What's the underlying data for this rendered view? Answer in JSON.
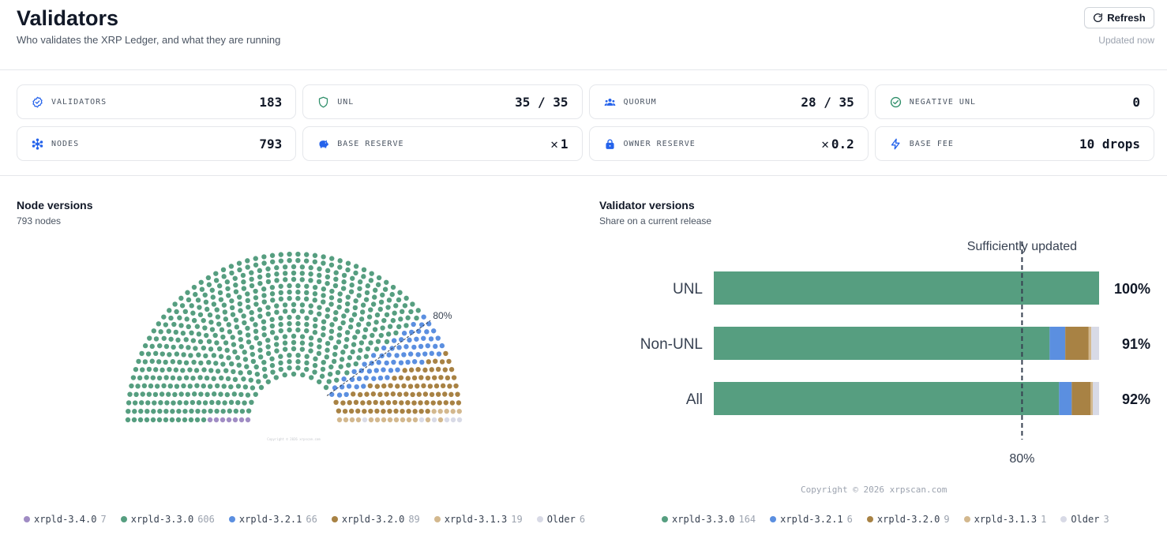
{
  "header": {
    "title": "Validators",
    "subtitle": "Who validates the XRP Ledger, and what they are running",
    "refresh_label": "Refresh",
    "updated": "Updated now"
  },
  "stats": [
    {
      "label": "VALIDATORS",
      "value": "183",
      "icon": "badge-check-icon"
    },
    {
      "label": "UNL",
      "value": "35 / 35",
      "icon": "shield-icon"
    },
    {
      "label": "QUORUM",
      "value": "28 / 35",
      "icon": "users-icon"
    },
    {
      "label": "NEGATIVE UNL",
      "value": "0",
      "icon": "check-circle-icon"
    },
    {
      "label": "NODES",
      "value": "793",
      "icon": "network-icon"
    },
    {
      "label": "BASE RESERVE",
      "value": "1",
      "icon": "piggy-bank-icon",
      "xrp": true
    },
    {
      "label": "OWNER RESERVE",
      "value": "0.2",
      "icon": "lock-icon",
      "xrp": true
    },
    {
      "label": "BASE FEE",
      "value": "10 drops",
      "icon": "bolt-icon"
    }
  ],
  "node_versions": {
    "title": "Node versions",
    "subtitle": "793 nodes",
    "threshold_label": "80%",
    "copyright": "Copyright © 2026 xrpscan.com",
    "legend": [
      {
        "name": "xrpld-3.4.0",
        "count": "7",
        "color": "#a08cc4"
      },
      {
        "name": "xrpld-3.3.0",
        "count": "606",
        "color": "#569e80"
      },
      {
        "name": "xrpld-3.2.1",
        "count": "66",
        "color": "#5b8fe0"
      },
      {
        "name": "xrpld-3.2.0",
        "count": "89",
        "color": "#a88244"
      },
      {
        "name": "xrpld-3.1.3",
        "count": "19",
        "color": "#d3b88e"
      },
      {
        "name": "Older",
        "count": "6",
        "color": "#d8dae6"
      }
    ]
  },
  "validator_versions": {
    "title": "Validator versions",
    "subtitle": "Share on a current release",
    "copyright": "Copyright © 2026 xrpscan.com",
    "legend": [
      {
        "name": "xrpld-3.3.0",
        "count": "164",
        "color": "#569e80"
      },
      {
        "name": "xrpld-3.2.1",
        "count": "6",
        "color": "#5b8fe0"
      },
      {
        "name": "xrpld-3.2.0",
        "count": "9",
        "color": "#a88244"
      },
      {
        "name": "xrpld-3.1.3",
        "count": "1",
        "color": "#d3b88e"
      },
      {
        "name": "Older",
        "count": "3",
        "color": "#d8dae6"
      }
    ]
  },
  "chart_data": [
    {
      "type": "parliament",
      "title": "Node versions",
      "subtitle": "793 nodes",
      "categories": [
        "xrpld-3.4.0",
        "xrpld-3.3.0",
        "xrpld-3.2.1",
        "xrpld-3.2.0",
        "xrpld-3.1.3",
        "Older"
      ],
      "values": [
        7,
        606,
        66,
        89,
        19,
        6
      ],
      "colors": [
        "#a08cc4",
        "#569e80",
        "#5b8fe0",
        "#a88244",
        "#d3b88e",
        "#d8dae6"
      ],
      "threshold_pct": 80,
      "threshold_label": "80%"
    },
    {
      "type": "bar",
      "orientation": "horizontal",
      "stacked": true,
      "title": "Validator versions",
      "subtitle": "Share on a current release",
      "categories": [
        "UNL",
        "Non-UNL",
        "All"
      ],
      "series": [
        {
          "name": "xrpld-3.3.0",
          "color": "#569e80",
          "values": [
            35,
            129,
            164
          ]
        },
        {
          "name": "xrpld-3.2.1",
          "color": "#5b8fe0",
          "values": [
            0,
            6,
            6
          ]
        },
        {
          "name": "xrpld-3.2.0",
          "color": "#a88244",
          "values": [
            0,
            9,
            9
          ]
        },
        {
          "name": "xrpld-3.1.3",
          "color": "#d3b88e",
          "values": [
            0,
            1,
            1
          ]
        },
        {
          "name": "Older",
          "color": "#d8dae6",
          "values": [
            0,
            3,
            3
          ]
        }
      ],
      "share_labels": [
        "100%",
        "91%",
        "92%"
      ],
      "threshold_pct": 80,
      "threshold_label": "80%",
      "annotation": "Sufficiently updated"
    }
  ]
}
